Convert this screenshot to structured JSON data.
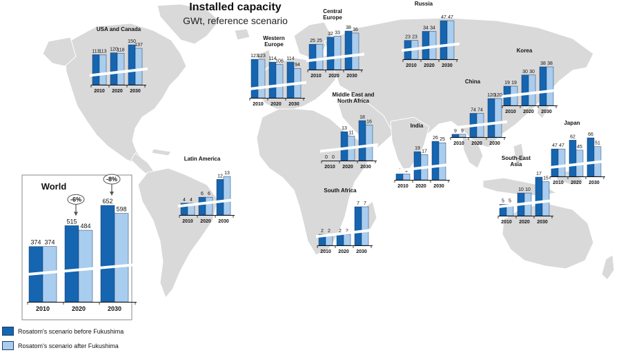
{
  "header": {
    "title": "Installed capacity",
    "subtitle": "GWt, reference scenario"
  },
  "legend": {
    "before": "Rosatom's scenario before Fukushima",
    "after": "Rosatom's scenario after Fukushima"
  },
  "colors": {
    "before": "#1565b0",
    "after": "#a9cdee",
    "map": "#d9d9d9",
    "border": "#ffffff"
  },
  "chart_data": [
    {
      "type": "bar",
      "region": "World",
      "title": "World",
      "categories": [
        "2010",
        "2020",
        "2030"
      ],
      "series": [
        {
          "name": "Rosatom's scenario before Fukushima",
          "values": [
            374,
            515,
            652
          ]
        },
        {
          "name": "Rosatom's scenario after Fukushima",
          "values": [
            374,
            484,
            598
          ]
        }
      ],
      "annotations": [
        "-6%",
        "-8%"
      ]
    },
    {
      "type": "bar",
      "region": "USA and Canada",
      "title": "USA and Canada",
      "categories": [
        "2010",
        "2020",
        "2030"
      ],
      "series": [
        {
          "name": "Rosatom's scenario before Fukushima",
          "values": [
            113,
            120,
            150
          ]
        },
        {
          "name": "Rosatom's scenario after Fukushima",
          "values": [
            113,
            118,
            137
          ]
        }
      ]
    },
    {
      "type": "bar",
      "region": "Western Europe",
      "title": "Western Europe",
      "categories": [
        "2010",
        "2020",
        "2030"
      ],
      "series": [
        {
          "name": "Rosatom's scenario before Fukushima",
          "values": [
            123,
            114,
            114
          ]
        },
        {
          "name": "Rosatom's scenario after Fukushima",
          "values": [
            123,
            106,
            94
          ]
        }
      ]
    },
    {
      "type": "bar",
      "region": "Central Europe",
      "title": "Central Europe",
      "categories": [
        "2010",
        "2020",
        "2030"
      ],
      "series": [
        {
          "name": "Rosatom's scenario before Fukushima",
          "values": [
            25,
            32,
            38
          ]
        },
        {
          "name": "Rosatom's scenario after Fukushima",
          "values": [
            25,
            33,
            36
          ]
        }
      ]
    },
    {
      "type": "bar",
      "region": "Russia",
      "title": "Russia",
      "categories": [
        "2010",
        "2020",
        "2030"
      ],
      "series": [
        {
          "name": "Rosatom's scenario before Fukushima",
          "values": [
            23,
            34,
            47
          ]
        },
        {
          "name": "Rosatom's scenario after Fukushima",
          "values": [
            23,
            34,
            47
          ]
        }
      ]
    },
    {
      "type": "bar",
      "region": "Korea",
      "title": "Korea",
      "categories": [
        "2010",
        "2020",
        "2030"
      ],
      "series": [
        {
          "name": "Rosatom's scenario before Fukushima",
          "values": [
            19,
            30,
            38
          ]
        },
        {
          "name": "Rosatom's scenario after Fukushima",
          "values": [
            19,
            30,
            38
          ]
        }
      ]
    },
    {
      "type": "bar",
      "region": "China",
      "title": "China",
      "categories": [
        "2010",
        "2020",
        "2030"
      ],
      "series": [
        {
          "name": "Rosatom's scenario before Fukushima",
          "values": [
            9,
            74,
            120
          ]
        },
        {
          "name": "Rosatom's scenario after Fukushima",
          "values": [
            9,
            74,
            120
          ]
        }
      ]
    },
    {
      "type": "bar",
      "region": "Middle East and North Africa",
      "title": "Middle East and North Africa",
      "categories": [
        "2010",
        "2020",
        "2030"
      ],
      "series": [
        {
          "name": "Rosatom's scenario before Fukushima",
          "values": [
            0,
            13,
            18
          ]
        },
        {
          "name": "Rosatom's scenario after Fukushima",
          "values": [
            0,
            11,
            16
          ]
        }
      ]
    },
    {
      "type": "bar",
      "region": "India",
      "title": "India",
      "categories": [
        "2010",
        "2020",
        "2030"
      ],
      "series": [
        {
          "name": "Rosatom's scenario before Fukushima",
          "values": [
            4,
            19,
            26
          ]
        },
        {
          "name": "Rosatom's scenario after Fukushima",
          "values": [
            4,
            17,
            25
          ]
        }
      ]
    },
    {
      "type": "bar",
      "region": "Japan",
      "title": "Japan",
      "categories": [
        "2010",
        "2020",
        "2030"
      ],
      "series": [
        {
          "name": "Rosatom's scenario before Fukushima",
          "values": [
            47,
            62,
            66
          ]
        },
        {
          "name": "Rosatom's scenario after Fukushima",
          "values": [
            47,
            45,
            51
          ]
        }
      ]
    },
    {
      "type": "bar",
      "region": "Latin America",
      "title": "Latin America",
      "categories": [
        "2010",
        "2020",
        "2030"
      ],
      "series": [
        {
          "name": "Rosatom's scenario before Fukushima",
          "values": [
            4,
            6,
            12
          ]
        },
        {
          "name": "Rosatom's scenario after Fukushima",
          "values": [
            4,
            6,
            13
          ]
        }
      ]
    },
    {
      "type": "bar",
      "region": "South Africa",
      "title": "South Africa",
      "categories": [
        "2010",
        "2020",
        "2030"
      ],
      "series": [
        {
          "name": "Rosatom's scenario before Fukushima",
          "values": [
            2,
            2,
            7
          ]
        },
        {
          "name": "Rosatom's scenario after Fukushima",
          "values": [
            2,
            2,
            7
          ]
        }
      ]
    },
    {
      "type": "bar",
      "region": "South-East Asia",
      "title": "South-East Asia",
      "categories": [
        "2010",
        "2020",
        "2030"
      ],
      "series": [
        {
          "name": "Rosatom's scenario before Fukushima",
          "values": [
            5,
            10,
            17
          ]
        },
        {
          "name": "Rosatom's scenario after Fukushima",
          "values": [
            5,
            10,
            15
          ]
        }
      ]
    }
  ]
}
